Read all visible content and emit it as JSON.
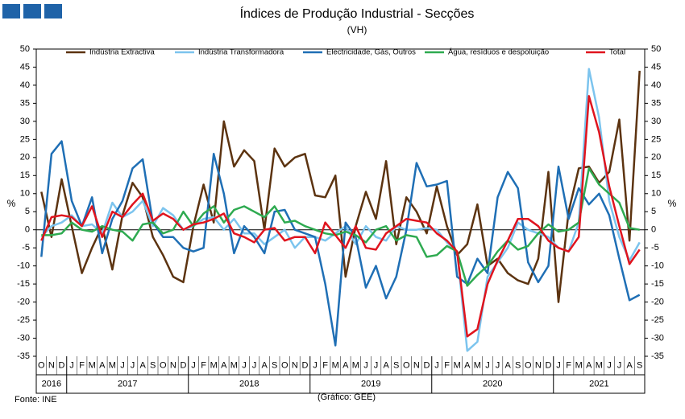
{
  "chart_data": {
    "type": "line",
    "title": "Índices de Produção Industrial - Secções",
    "subtitle": "(VH)",
    "y_label": "%",
    "y2_label": "%",
    "source": "Fonte: INE",
    "credit": "(Gráfico: GEE)",
    "categories": [
      "O",
      "N",
      "D",
      "J",
      "F",
      "M",
      "A",
      "M",
      "J",
      "J",
      "A",
      "S",
      "O",
      "N",
      "D",
      "J",
      "F",
      "M",
      "A",
      "M",
      "J",
      "J",
      "A",
      "S",
      "O",
      "N",
      "D",
      "J",
      "F",
      "M",
      "A",
      "M",
      "J",
      "J",
      "A",
      "S",
      "O",
      "N",
      "D",
      "J",
      "F",
      "M",
      "A",
      "M",
      "J",
      "J",
      "A",
      "S",
      "O",
      "N",
      "D",
      "J",
      "F",
      "M",
      "A",
      "M",
      "J",
      "J",
      "A",
      "S"
    ],
    "years": [
      "2016",
      "2017",
      "2018",
      "2019",
      "2020",
      "2021"
    ],
    "ylim": [
      -35,
      50
    ],
    "yticks": [
      -35,
      -30,
      -25,
      -20,
      -15,
      -10,
      -5,
      0,
      5,
      10,
      15,
      20,
      25,
      30,
      35,
      40,
      45,
      50
    ],
    "y2lim": [
      -35,
      50
    ],
    "y2ticks": [
      -35,
      -30,
      -25,
      -20,
      -15,
      -10,
      -5,
      0,
      5,
      10,
      15,
      20,
      25,
      30,
      35,
      40,
      45,
      50
    ],
    "series": [
      {
        "name": "Indústria Extractiva",
        "color": "#5c3310",
        "values": [
          10.5,
          -2,
          14,
          1,
          -12,
          -5,
          1,
          -11,
          4,
          13,
          9,
          -2,
          -7,
          -13,
          -14.5,
          1,
          12.5,
          2,
          30,
          17.5,
          22,
          19,
          0,
          22.5,
          17.5,
          20,
          21,
          9.5,
          9,
          15,
          -13,
          1,
          10.5,
          3,
          19,
          -4,
          9,
          5,
          -1,
          12,
          1,
          -7,
          -4,
          7,
          -10,
          -8,
          -12,
          -14,
          -15,
          -8,
          16,
          -20,
          5,
          17,
          17.5,
          13,
          16,
          30.5,
          -3,
          44
        ]
      },
      {
        "name": "Indústria Transformadora",
        "color": "#7cc4ee",
        "values": [
          -2,
          1,
          2,
          4,
          1,
          1.5,
          -1,
          7.5,
          3.5,
          5,
          8,
          1,
          6,
          4,
          0,
          1,
          3,
          3.5,
          0,
          3,
          -1,
          -1,
          -4,
          -2,
          0,
          -5,
          -2,
          -2,
          -3,
          -1,
          1,
          -4,
          1,
          -2,
          -3,
          1,
          0,
          0,
          0.5,
          0,
          -3.5,
          -6,
          -33.5,
          -31,
          -13,
          -9,
          -5,
          2,
          0,
          -1,
          -2,
          -5,
          -6,
          2,
          44.5,
          31,
          8,
          -2,
          -8.5,
          -3.5
        ]
      },
      {
        "name": "Electricidade, Gás, Outros",
        "color": "#1f6fb5",
        "values": [
          -7.5,
          21,
          24.5,
          8,
          1,
          9,
          -6.5,
          3,
          8,
          17,
          19.5,
          2,
          -2,
          -2,
          -5,
          -6,
          -5,
          21,
          10,
          -6.5,
          1,
          -2,
          -6.5,
          5,
          5.5,
          0,
          -1,
          -2,
          -15,
          -32,
          2,
          -2,
          -16,
          -10,
          -19,
          -13,
          0,
          18.5,
          12,
          12.5,
          13.5,
          -13,
          -15,
          -8,
          -12,
          9,
          16,
          11.5,
          -9,
          -14.5,
          -10,
          17.5,
          3,
          11.5,
          7,
          10,
          4,
          -8,
          -19.5,
          -18
        ]
      },
      {
        "name": "Água, resíduos e despoluição",
        "color": "#2eaa50",
        "values": [
          -1.5,
          -1.5,
          -1,
          2,
          0,
          -0.5,
          1,
          0,
          -0.5,
          -3,
          1.5,
          2,
          -1,
          0,
          5,
          1,
          4.5,
          6.5,
          2,
          5.5,
          6.5,
          5,
          3.5,
          6.5,
          2,
          2.5,
          1,
          0,
          -1,
          -1.5,
          -0.5,
          -1.5,
          -3.5,
          0,
          1,
          -3,
          -1.5,
          -2,
          -7.5,
          -7,
          -4.5,
          -6,
          -15.5,
          -12.5,
          -10,
          -6,
          -3,
          -5.5,
          -4.5,
          -1,
          1.5,
          -0.5,
          0,
          2,
          17,
          12.5,
          10,
          7.5,
          0.5,
          0
        ]
      },
      {
        "name": "Total",
        "color": "#e0141e",
        "values": [
          -3,
          3.5,
          4,
          3.5,
          1,
          6.5,
          -2,
          5,
          3.5,
          7,
          10,
          2.5,
          4.5,
          3,
          0,
          1.5,
          2,
          3,
          4.5,
          -1,
          -2,
          -3.5,
          0,
          0.5,
          -3,
          -2,
          -2,
          -6.5,
          2,
          -1.5,
          -5,
          1,
          -5,
          -5.5,
          -1,
          1,
          3,
          2.5,
          2,
          -1,
          -3,
          -6,
          -29.5,
          -27.5,
          -15,
          -8.5,
          -3,
          3,
          3,
          1,
          -3,
          -5,
          -6,
          -2,
          37,
          27,
          12,
          1,
          -9.5,
          -5.5
        ]
      }
    ]
  }
}
